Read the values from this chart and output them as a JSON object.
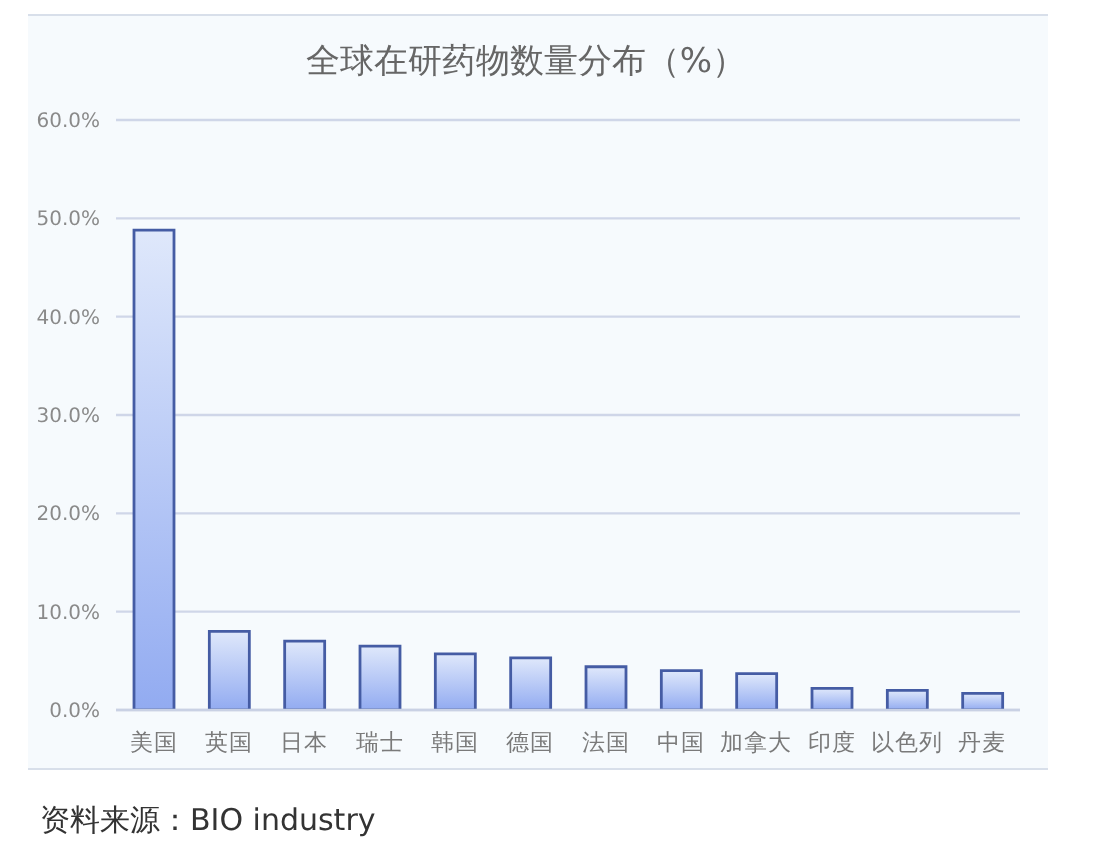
{
  "chart_data": {
    "type": "bar",
    "title": "全球在研药物数量分布（%）",
    "categories": [
      "美国",
      "英国",
      "日本",
      "瑞士",
      "韩国",
      "德国",
      "法国",
      "中国",
      "加拿大",
      "印度",
      "以色列",
      "丹麦"
    ],
    "values": [
      48.8,
      8.0,
      7.0,
      6.5,
      5.7,
      5.3,
      4.4,
      4.0,
      3.7,
      2.2,
      2.0,
      1.7
    ],
    "color": "#455ca4",
    "ylim": [
      0,
      60
    ],
    "yticks": [
      {
        "value": 0,
        "label": "0.0%"
      },
      {
        "value": 10,
        "label": "10.0%"
      },
      {
        "value": 20,
        "label": "20.0%"
      },
      {
        "value": 30,
        "label": "30.0%"
      },
      {
        "value": 40,
        "label": "40.0%"
      },
      {
        "value": 50,
        "label": "50.0%"
      },
      {
        "value": 60,
        "label": "60.0%"
      }
    ],
    "grid": "y",
    "annotations": [
      "资料来源：BIO industry"
    ]
  }
}
